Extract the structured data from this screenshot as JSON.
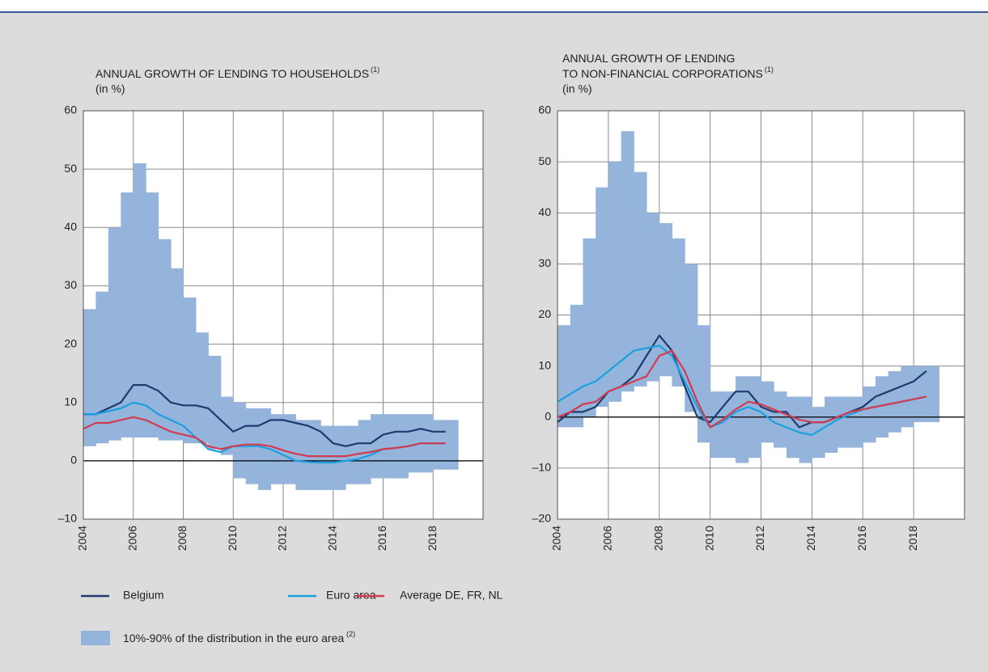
{
  "chart_data": [
    {
      "type": "line-band",
      "title": [
        "ANNUAL GROWTH OF LENDING TO HOUSEHOLDS"
      ],
      "title_note": "(1)",
      "subtitle": "(in %)",
      "x": [
        2004.0,
        2004.5,
        2005.0,
        2005.5,
        2006.0,
        2006.5,
        2007.0,
        2007.5,
        2008.0,
        2008.5,
        2009.0,
        2009.5,
        2010.0,
        2010.5,
        2011.0,
        2011.5,
        2012.0,
        2012.5,
        2013.0,
        2013.5,
        2014.0,
        2014.5,
        2015.0,
        2015.5,
        2016.0,
        2016.5,
        2017.0,
        2017.5,
        2018.0,
        2018.5
      ],
      "xlim": [
        2004,
        2020
      ],
      "xticks": [
        2004,
        2006,
        2008,
        2010,
        2012,
        2014,
        2016,
        2018
      ],
      "ylim": [
        -10,
        60
      ],
      "yticks": [
        {
          "value": -10,
          "label": "–10"
        },
        0,
        10,
        20,
        30,
        40,
        50,
        60
      ],
      "grid": true,
      "band": {
        "name": "10%-90% of the distribution in the euro area",
        "note": "(2)",
        "color": "#94b4dc",
        "low": [
          2.5,
          3,
          3.5,
          4,
          4,
          4,
          3.5,
          3.5,
          3,
          3,
          2,
          1,
          -3,
          -4,
          -5,
          -4,
          -4,
          -5,
          -5,
          -5,
          -5,
          -4,
          -4,
          -3,
          -3,
          -3,
          -2,
          -2,
          -1.5,
          -1.5
        ],
        "high": [
          26,
          29,
          40,
          46,
          51,
          46,
          38,
          33,
          28,
          22,
          18,
          11,
          10,
          9,
          9,
          8,
          8,
          7,
          7,
          6,
          6,
          6,
          7,
          8,
          8,
          8,
          8,
          8,
          7,
          7
        ]
      },
      "series": [
        {
          "name": "Belgium",
          "color": "#1f3a6e",
          "values": [
            8,
            8,
            9,
            10,
            13,
            13,
            12,
            10,
            9.5,
            9.5,
            9,
            7,
            5,
            6,
            6,
            7,
            7,
            6.5,
            6,
            5,
            3,
            2.5,
            3,
            3,
            4.5,
            5,
            5,
            5.5,
            5,
            5
          ]
        },
        {
          "name": "Euro area",
          "color": "#1aa0e0",
          "values": [
            8,
            8,
            8.5,
            9,
            10,
            9.5,
            8,
            7,
            6,
            4,
            2,
            1.5,
            2.5,
            2.5,
            2.5,
            2,
            1,
            0,
            -0.2,
            -0.3,
            -0.3,
            0,
            0.3,
            1,
            2,
            2.2,
            2.5,
            3,
            3,
            3
          ]
        },
        {
          "name": "Average DE, FR, NL",
          "color": "#d43a4f",
          "values": [
            5.5,
            6.5,
            6.5,
            7,
            7.5,
            7,
            6,
            5,
            4.5,
            4,
            2.5,
            2,
            2.5,
            2.8,
            2.8,
            2.5,
            1.8,
            1.2,
            0.8,
            0.8,
            0.8,
            0.8,
            1.2,
            1.5,
            2,
            2.2,
            2.5,
            3,
            3,
            3
          ]
        }
      ]
    },
    {
      "type": "line-band",
      "title": [
        "ANNUAL GROWTH OF LENDING",
        "TO NON-FINANCIAL CORPORATIONS"
      ],
      "title_note": "(1)",
      "subtitle": "(in %)",
      "x": [
        2004.0,
        2004.5,
        2005.0,
        2005.5,
        2006.0,
        2006.5,
        2007.0,
        2007.5,
        2008.0,
        2008.5,
        2009.0,
        2009.5,
        2010.0,
        2010.5,
        2011.0,
        2011.5,
        2012.0,
        2012.5,
        2013.0,
        2013.5,
        2014.0,
        2014.5,
        2015.0,
        2015.5,
        2016.0,
        2016.5,
        2017.0,
        2017.5,
        2018.0,
        2018.5
      ],
      "xlim": [
        2004,
        2020
      ],
      "xticks": [
        2004,
        2006,
        2008,
        2010,
        2012,
        2014,
        2016,
        2018
      ],
      "ylim": [
        -20,
        60
      ],
      "yticks": [
        {
          "value": -20,
          "label": "–20"
        },
        {
          "value": -10,
          "label": "–10"
        },
        0,
        10,
        20,
        30,
        40,
        50,
        60
      ],
      "grid": true,
      "band": {
        "low": [
          -2,
          -2,
          0,
          2,
          3,
          5,
          6,
          7,
          8,
          6,
          1,
          -5,
          -8,
          -8,
          -9,
          -8,
          -5,
          -6,
          -8,
          -9,
          -8,
          -7,
          -6,
          -6,
          -5,
          -4,
          -3,
          -2,
          -1,
          -1
        ],
        "high": [
          18,
          22,
          35,
          45,
          50,
          56,
          48,
          40,
          38,
          35,
          30,
          18,
          5,
          5,
          8,
          8,
          7,
          5,
          4,
          4,
          2,
          4,
          4,
          4,
          6,
          8,
          9,
          10,
          10,
          10
        ]
      },
      "series": [
        {
          "values": [
            -1,
            1,
            1,
            2,
            5,
            6,
            8,
            12,
            16,
            13,
            6,
            0,
            -1,
            2,
            5,
            5,
            2,
            1,
            1,
            -2,
            -1,
            -1,
            0,
            1,
            2,
            4,
            5,
            6,
            7,
            9
          ]
        },
        {
          "values": [
            3,
            4.5,
            6,
            7,
            9,
            11,
            13,
            13.5,
            14,
            12,
            7,
            2,
            -2,
            -1,
            1,
            2,
            1,
            -1,
            -2,
            -3,
            -3.5,
            -2,
            -0.5,
            0.5,
            1.5,
            2,
            2.5,
            3,
            3.5,
            4
          ]
        },
        {
          "values": [
            0,
            1,
            2.5,
            3,
            5,
            6,
            7,
            8,
            12,
            13,
            9,
            3,
            -2,
            -0.5,
            1.5,
            3,
            2.5,
            1.5,
            0.5,
            -0.5,
            -1,
            -1,
            0,
            1,
            1.5,
            2,
            2.5,
            3,
            3.5,
            4
          ]
        }
      ]
    }
  ]
}
